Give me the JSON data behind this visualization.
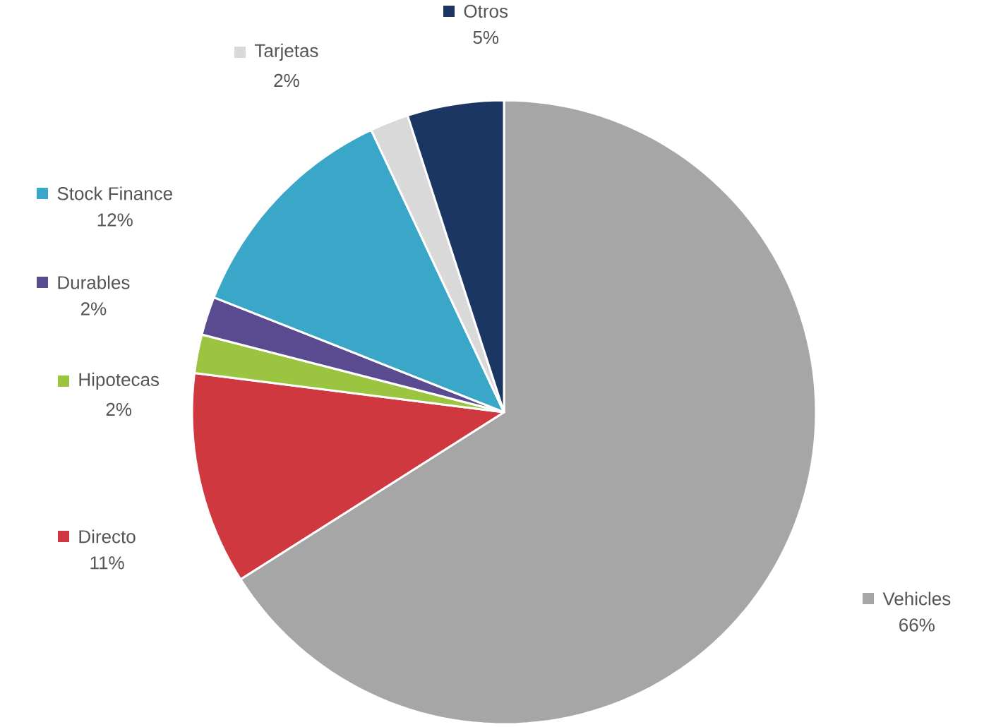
{
  "chart_data": {
    "type": "pie",
    "legend": "left",
    "categories": [
      "Vehicles",
      "Directo",
      "Hipotecas",
      "Durables",
      "Stock Finance",
      "Tarjetas",
      "Otros"
    ],
    "values": [
      66,
      11,
      2,
      2,
      12,
      2,
      5
    ],
    "value_labels": [
      "66%",
      "11%",
      "2%",
      "2%",
      "12%",
      "2%",
      "5%"
    ],
    "colors": [
      "#a6a6a6",
      "#d0383f",
      "#9bc440",
      "#5a4a8f",
      "#3aa7c9",
      "#d9d9d9",
      "#1c3664"
    ]
  }
}
